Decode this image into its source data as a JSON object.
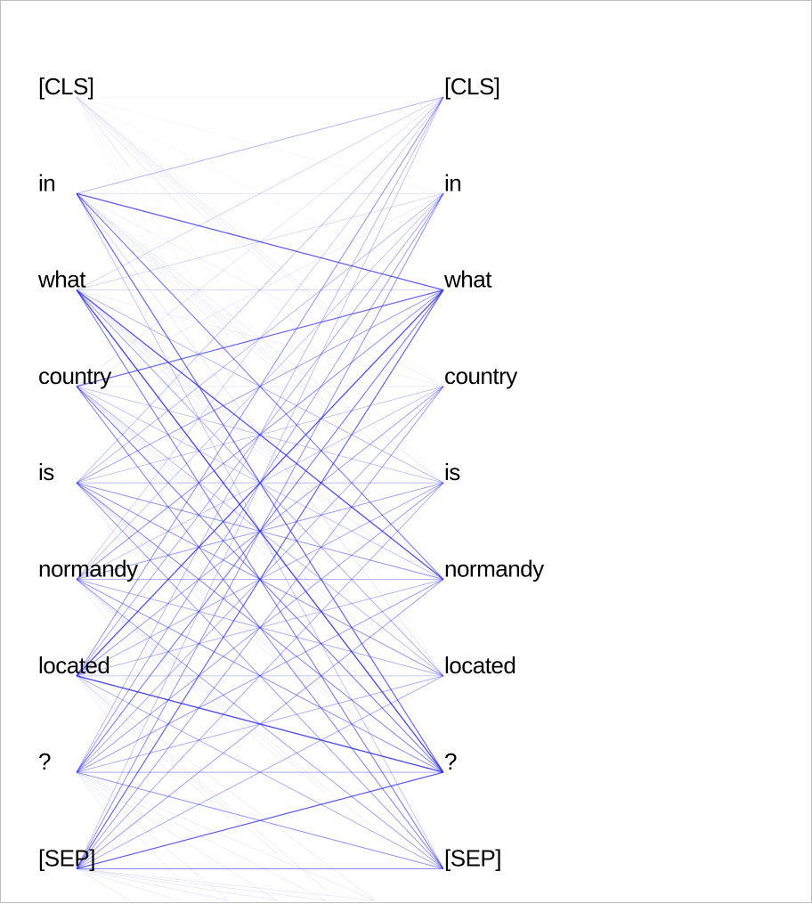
{
  "tokens_left": [
    "[CLS]",
    "in",
    "what",
    "country",
    "is",
    "normandy",
    "located",
    "?",
    "[SEP]"
  ],
  "tokens_right": [
    "[CLS]",
    "in",
    "what",
    "country",
    "is",
    "normandy",
    "located",
    "?",
    "[SEP]"
  ],
  "line_color": "#2b2be6",
  "attention": [
    [
      0.02,
      0.02,
      0.02,
      0.02,
      0.02,
      0.02,
      0.02,
      0.02,
      0.02
    ],
    [
      0.35,
      0.18,
      0.75,
      0.1,
      0.12,
      0.6,
      0.15,
      0.7,
      0.3
    ],
    [
      0.22,
      0.2,
      0.25,
      0.1,
      0.35,
      0.8,
      0.4,
      0.85,
      0.6
    ],
    [
      0.15,
      0.12,
      0.7,
      0.12,
      0.3,
      0.3,
      0.35,
      0.6,
      0.55
    ],
    [
      0.3,
      0.35,
      0.45,
      0.3,
      0.35,
      0.5,
      0.5,
      0.55,
      0.45
    ],
    [
      0.25,
      0.3,
      0.5,
      0.3,
      0.45,
      0.35,
      0.4,
      0.5,
      0.45
    ],
    [
      0.5,
      0.4,
      0.8,
      0.45,
      0.4,
      0.35,
      0.3,
      0.85,
      0.4
    ],
    [
      0.35,
      0.45,
      0.6,
      0.4,
      0.45,
      0.45,
      0.4,
      0.4,
      0.5
    ],
    [
      0.3,
      0.5,
      0.7,
      0.45,
      0.4,
      0.45,
      0.4,
      0.75,
      0.55
    ]
  ]
}
